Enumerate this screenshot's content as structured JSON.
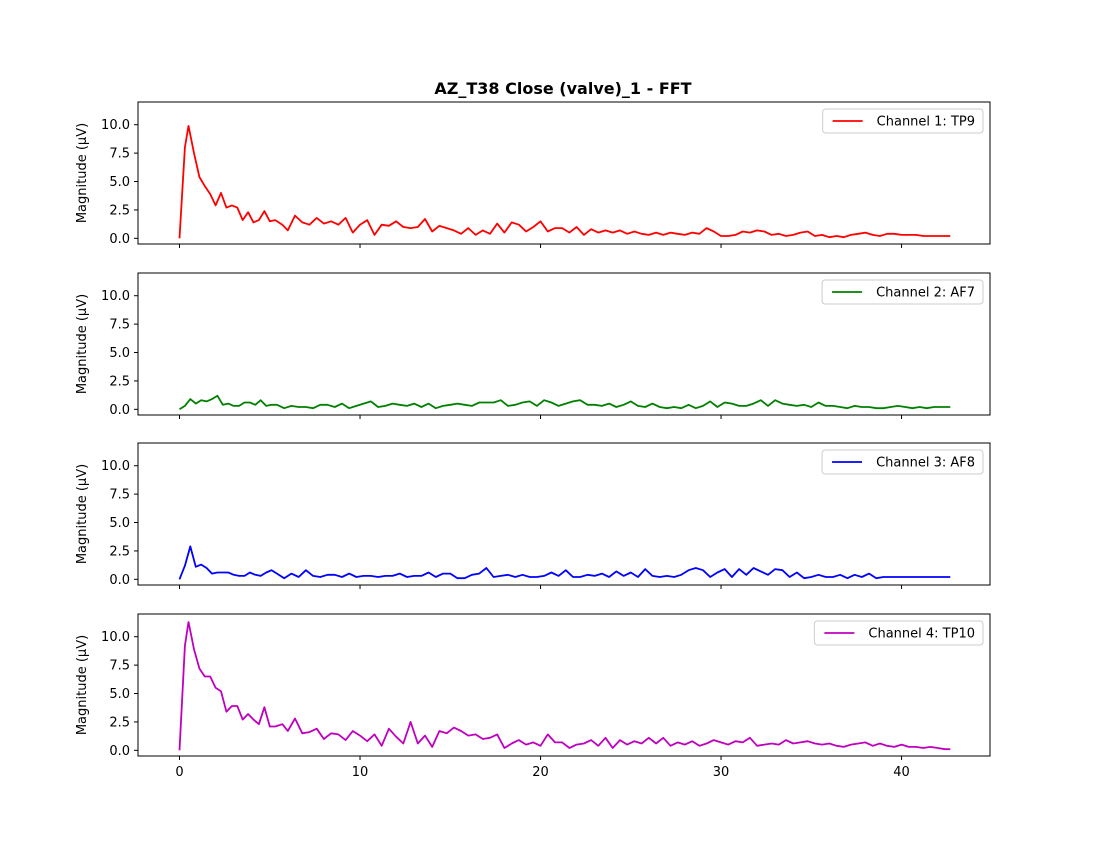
{
  "chart_data": {
    "type": "line",
    "title": "AZ_T38 Close (valve)_1 - FFT",
    "xlim": [
      -2.3,
      44.9
    ],
    "ylim": [
      -0.5,
      12
    ],
    "x_ticks": [
      0,
      10,
      20,
      30,
      40
    ],
    "y_ticks": [
      0.0,
      2.5,
      5.0,
      7.5,
      10.0
    ],
    "y_tick_labels": [
      "0.0",
      "2.5",
      "5.0",
      "7.5",
      "10.0"
    ],
    "ylabel": "Magnitude (μV)",
    "legend_position": "upper right",
    "grid": false,
    "panels": [
      {
        "name": "Channel 1: TP9",
        "color": "#ff0000",
        "x": [
          0,
          0.3,
          0.5,
          0.8,
          1.1,
          1.4,
          1.7,
          2.0,
          2.3,
          2.6,
          2.9,
          3.2,
          3.5,
          3.8,
          4.1,
          4.4,
          4.7,
          5.0,
          5.3,
          5.7,
          6.0,
          6.4,
          6.8,
          7.2,
          7.6,
          8.0,
          8.4,
          8.8,
          9.2,
          9.6,
          10.0,
          10.4,
          10.8,
          11.2,
          11.6,
          12.0,
          12.4,
          12.8,
          13.2,
          13.6,
          14.0,
          14.4,
          14.8,
          15.2,
          15.6,
          16.0,
          16.4,
          16.8,
          17.2,
          17.6,
          18.0,
          18.4,
          18.8,
          19.2,
          19.6,
          20.0,
          20.4,
          20.8,
          21.2,
          21.6,
          22.0,
          22.4,
          22.8,
          23.2,
          23.6,
          24.0,
          24.4,
          24.8,
          25.2,
          25.6,
          26.0,
          26.4,
          26.8,
          27.2,
          27.6,
          28.0,
          28.4,
          28.8,
          29.2,
          29.6,
          30.0,
          30.4,
          30.8,
          31.2,
          31.6,
          32.0,
          32.4,
          32.8,
          33.2,
          33.6,
          34.0,
          34.4,
          34.8,
          35.2,
          35.6,
          36.0,
          36.4,
          36.8,
          37.2,
          37.6,
          38.0,
          38.4,
          38.8,
          39.2,
          39.6,
          40.0,
          40.4,
          40.8,
          41.2,
          41.6,
          42.0,
          42.4,
          42.7
        ],
        "y": [
          0.0,
          8.0,
          9.9,
          7.5,
          5.4,
          4.6,
          3.9,
          2.9,
          4.0,
          2.7,
          2.9,
          2.7,
          1.6,
          2.3,
          1.4,
          1.6,
          2.4,
          1.5,
          1.6,
          1.2,
          0.7,
          2.0,
          1.4,
          1.2,
          1.8,
          1.3,
          1.5,
          1.2,
          1.8,
          0.5,
          1.2,
          1.6,
          0.3,
          1.2,
          1.1,
          1.5,
          1.0,
          0.9,
          1.0,
          1.7,
          0.6,
          1.1,
          0.9,
          0.7,
          0.4,
          0.9,
          0.3,
          0.7,
          0.4,
          1.3,
          0.5,
          1.4,
          1.2,
          0.6,
          1.0,
          1.5,
          0.6,
          0.9,
          0.9,
          0.5,
          1.0,
          0.3,
          0.8,
          0.5,
          0.7,
          0.5,
          0.7,
          0.4,
          0.6,
          0.4,
          0.3,
          0.5,
          0.3,
          0.5,
          0.4,
          0.3,
          0.5,
          0.4,
          0.9,
          0.6,
          0.2,
          0.2,
          0.3,
          0.6,
          0.5,
          0.7,
          0.6,
          0.3,
          0.4,
          0.2,
          0.3,
          0.5,
          0.6,
          0.2,
          0.3,
          0.1,
          0.2,
          0.1,
          0.3,
          0.4,
          0.5,
          0.3,
          0.2,
          0.4,
          0.4,
          0.3,
          0.3,
          0.3,
          0.2,
          0.2,
          0.2,
          0.2,
          0.2
        ]
      },
      {
        "name": "Channel 2: AF7",
        "color": "#008000",
        "x": [
          0,
          0.3,
          0.6,
          0.9,
          1.2,
          1.5,
          1.8,
          2.1,
          2.4,
          2.7,
          3.0,
          3.3,
          3.6,
          3.9,
          4.2,
          4.5,
          4.8,
          5.1,
          5.4,
          5.8,
          6.2,
          6.6,
          7.0,
          7.4,
          7.8,
          8.2,
          8.6,
          9.0,
          9.4,
          9.8,
          10.2,
          10.6,
          11.0,
          11.4,
          11.8,
          12.2,
          12.6,
          13.0,
          13.4,
          13.8,
          14.2,
          14.6,
          15.0,
          15.4,
          15.8,
          16.2,
          16.6,
          17.0,
          17.4,
          17.8,
          18.2,
          18.6,
          19.0,
          19.4,
          19.8,
          20.2,
          20.6,
          21.0,
          21.4,
          21.8,
          22.2,
          22.6,
          23.0,
          23.4,
          23.8,
          24.2,
          24.6,
          25.0,
          25.4,
          25.8,
          26.2,
          26.6,
          27.0,
          27.4,
          27.8,
          28.2,
          28.6,
          29.0,
          29.4,
          29.8,
          30.2,
          30.6,
          31.0,
          31.4,
          31.8,
          32.2,
          32.6,
          33.0,
          33.4,
          33.8,
          34.2,
          34.6,
          35.0,
          35.4,
          35.8,
          36.2,
          36.6,
          37.0,
          37.4,
          37.8,
          38.2,
          38.6,
          39.0,
          39.4,
          39.8,
          40.2,
          40.6,
          41.0,
          41.4,
          41.8,
          42.2,
          42.7
        ],
        "y": [
          0.0,
          0.3,
          0.9,
          0.5,
          0.8,
          0.7,
          0.9,
          1.2,
          0.4,
          0.5,
          0.3,
          0.3,
          0.6,
          0.6,
          0.4,
          0.8,
          0.3,
          0.4,
          0.4,
          0.1,
          0.3,
          0.2,
          0.2,
          0.1,
          0.4,
          0.4,
          0.2,
          0.5,
          0.1,
          0.3,
          0.5,
          0.7,
          0.2,
          0.3,
          0.5,
          0.4,
          0.3,
          0.5,
          0.2,
          0.5,
          0.1,
          0.3,
          0.4,
          0.5,
          0.4,
          0.3,
          0.6,
          0.6,
          0.6,
          0.8,
          0.3,
          0.4,
          0.6,
          0.7,
          0.3,
          0.8,
          0.6,
          0.3,
          0.5,
          0.7,
          0.8,
          0.4,
          0.4,
          0.3,
          0.5,
          0.2,
          0.4,
          0.7,
          0.3,
          0.2,
          0.5,
          0.2,
          0.1,
          0.2,
          0.1,
          0.4,
          0.1,
          0.3,
          0.7,
          0.2,
          0.6,
          0.5,
          0.3,
          0.3,
          0.5,
          0.8,
          0.3,
          0.8,
          0.5,
          0.4,
          0.3,
          0.4,
          0.2,
          0.6,
          0.3,
          0.3,
          0.2,
          0.1,
          0.3,
          0.2,
          0.2,
          0.1,
          0.1,
          0.2,
          0.3,
          0.2,
          0.1,
          0.2,
          0.1,
          0.2,
          0.2,
          0.2
        ]
      },
      {
        "name": "Channel 3: AF8",
        "color": "#0000ff",
        "x": [
          0,
          0.3,
          0.6,
          0.9,
          1.2,
          1.5,
          1.8,
          2.1,
          2.4,
          2.7,
          3.0,
          3.3,
          3.6,
          3.9,
          4.2,
          4.5,
          4.8,
          5.1,
          5.4,
          5.8,
          6.2,
          6.6,
          7.0,
          7.4,
          7.8,
          8.2,
          8.6,
          9.0,
          9.4,
          9.8,
          10.2,
          10.6,
          11.0,
          11.4,
          11.8,
          12.2,
          12.6,
          13.0,
          13.4,
          13.8,
          14.2,
          14.6,
          15.0,
          15.4,
          15.8,
          16.2,
          16.6,
          17.0,
          17.4,
          17.8,
          18.2,
          18.6,
          19.0,
          19.4,
          19.8,
          20.2,
          20.6,
          21.0,
          21.4,
          21.8,
          22.2,
          22.6,
          23.0,
          23.4,
          23.8,
          24.2,
          24.6,
          25.0,
          25.4,
          25.8,
          26.2,
          26.6,
          27.0,
          27.4,
          27.8,
          28.2,
          28.6,
          29.0,
          29.4,
          29.8,
          30.2,
          30.6,
          31.0,
          31.4,
          31.8,
          32.2,
          32.6,
          33.0,
          33.4,
          33.8,
          34.2,
          34.6,
          35.0,
          35.4,
          35.8,
          36.2,
          36.6,
          37.0,
          37.4,
          37.8,
          38.2,
          38.6,
          39.0,
          39.4,
          39.8,
          40.2,
          40.6,
          41.0,
          41.4,
          41.8,
          42.2,
          42.7
        ],
        "y": [
          0.0,
          1.2,
          2.9,
          1.1,
          1.3,
          1.0,
          0.5,
          0.6,
          0.6,
          0.6,
          0.4,
          0.3,
          0.3,
          0.6,
          0.4,
          0.3,
          0.6,
          0.8,
          0.5,
          0.1,
          0.5,
          0.2,
          0.8,
          0.3,
          0.2,
          0.4,
          0.4,
          0.2,
          0.5,
          0.2,
          0.3,
          0.3,
          0.2,
          0.3,
          0.3,
          0.5,
          0.2,
          0.3,
          0.3,
          0.6,
          0.2,
          0.5,
          0.5,
          0.1,
          0.1,
          0.4,
          0.5,
          1.0,
          0.2,
          0.3,
          0.4,
          0.2,
          0.4,
          0.2,
          0.2,
          0.3,
          0.6,
          0.3,
          0.8,
          0.2,
          0.2,
          0.4,
          0.3,
          0.5,
          0.2,
          0.7,
          0.3,
          0.6,
          0.2,
          0.9,
          0.3,
          0.2,
          0.3,
          0.2,
          0.4,
          0.8,
          1.0,
          0.8,
          0.2,
          0.6,
          0.9,
          0.2,
          0.9,
          0.4,
          1.0,
          0.7,
          0.4,
          0.9,
          0.8,
          0.2,
          0.6,
          0.1,
          0.2,
          0.4,
          0.2,
          0.2,
          0.4,
          0.1,
          0.4,
          0.2,
          0.5,
          0.1,
          0.2,
          0.2,
          0.2,
          0.2,
          0.2,
          0.2,
          0.2,
          0.2,
          0.2,
          0.2
        ]
      },
      {
        "name": "Channel 4: TP10",
        "color": "#bf00bf",
        "x": [
          0,
          0.3,
          0.5,
          0.8,
          1.1,
          1.4,
          1.7,
          2.0,
          2.3,
          2.6,
          2.9,
          3.2,
          3.5,
          3.8,
          4.1,
          4.4,
          4.7,
          5.0,
          5.3,
          5.7,
          6.0,
          6.4,
          6.8,
          7.2,
          7.6,
          8.0,
          8.4,
          8.8,
          9.2,
          9.6,
          10.0,
          10.4,
          10.8,
          11.2,
          11.6,
          12.0,
          12.4,
          12.8,
          13.2,
          13.6,
          14.0,
          14.4,
          14.8,
          15.2,
          15.6,
          16.0,
          16.4,
          16.8,
          17.2,
          17.6,
          18.0,
          18.4,
          18.8,
          19.2,
          19.6,
          20.0,
          20.4,
          20.8,
          21.2,
          21.6,
          22.0,
          22.4,
          22.8,
          23.2,
          23.6,
          24.0,
          24.4,
          24.8,
          25.2,
          25.6,
          26.0,
          26.4,
          26.8,
          27.2,
          27.6,
          28.0,
          28.4,
          28.8,
          29.2,
          29.6,
          30.0,
          30.4,
          30.8,
          31.2,
          31.6,
          32.0,
          32.4,
          32.8,
          33.2,
          33.6,
          34.0,
          34.4,
          34.8,
          35.2,
          35.6,
          36.0,
          36.4,
          36.8,
          37.2,
          37.6,
          38.0,
          38.4,
          38.8,
          39.2,
          39.6,
          40.0,
          40.4,
          40.8,
          41.2,
          41.6,
          42.0,
          42.4,
          42.7
        ],
        "y": [
          0.0,
          9.2,
          11.3,
          8.9,
          7.2,
          6.5,
          6.5,
          5.5,
          5.2,
          3.4,
          3.9,
          3.9,
          2.7,
          3.2,
          2.7,
          2.3,
          3.8,
          2.1,
          2.1,
          2.3,
          1.7,
          2.8,
          1.5,
          1.6,
          1.9,
          1.0,
          1.5,
          1.4,
          0.9,
          1.7,
          1.3,
          0.8,
          1.4,
          0.4,
          1.9,
          1.2,
          0.6,
          2.5,
          0.6,
          1.3,
          0.3,
          1.7,
          1.5,
          2.0,
          1.7,
          1.3,
          1.4,
          1.0,
          1.1,
          1.4,
          0.2,
          0.6,
          0.9,
          0.5,
          0.7,
          0.4,
          1.4,
          0.7,
          0.7,
          0.2,
          0.5,
          0.6,
          0.9,
          0.4,
          1.1,
          0.2,
          0.9,
          0.5,
          0.8,
          0.6,
          1.1,
          0.6,
          1.1,
          0.4,
          0.7,
          0.5,
          0.8,
          0.4,
          0.6,
          0.9,
          0.7,
          0.5,
          0.8,
          0.7,
          1.1,
          0.4,
          0.5,
          0.6,
          0.5,
          0.9,
          0.6,
          0.7,
          0.8,
          0.6,
          0.5,
          0.6,
          0.4,
          0.3,
          0.5,
          0.6,
          0.7,
          0.4,
          0.6,
          0.4,
          0.3,
          0.5,
          0.3,
          0.3,
          0.2,
          0.3,
          0.2,
          0.1,
          0.1
        ]
      }
    ]
  }
}
